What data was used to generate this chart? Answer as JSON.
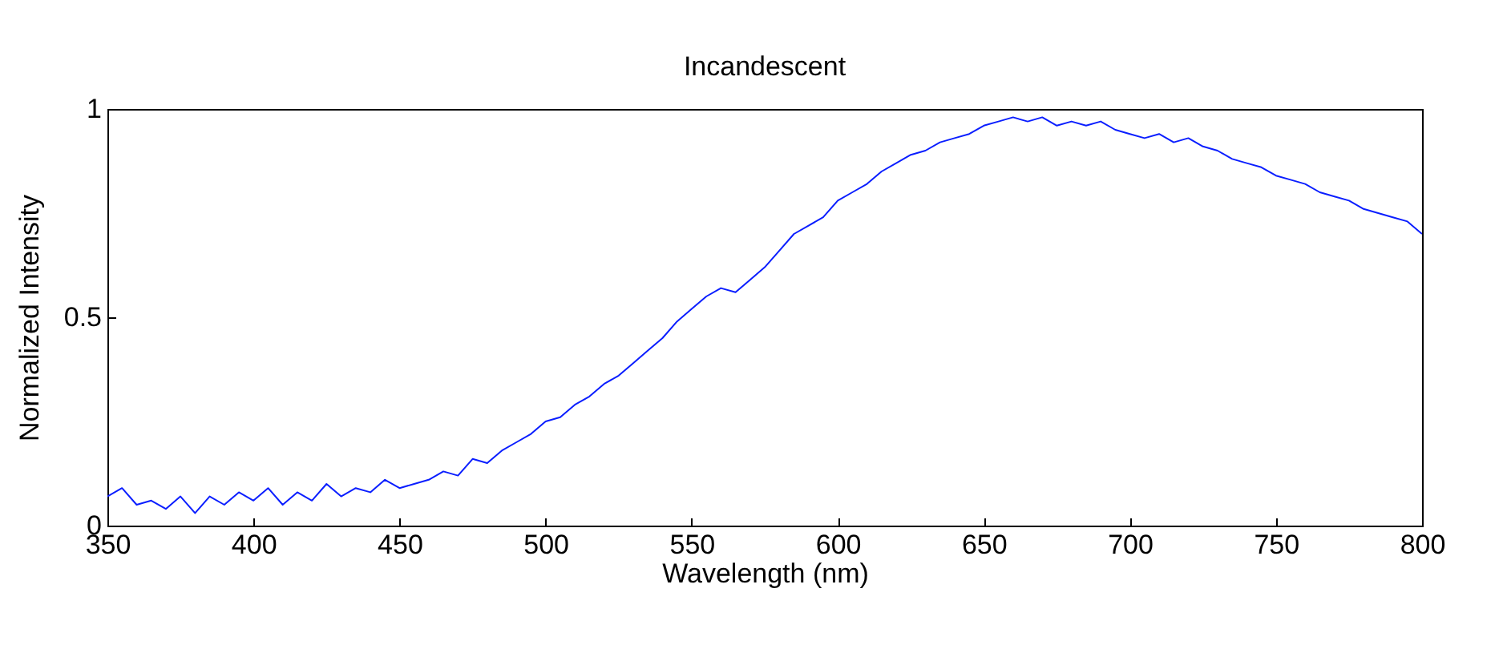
{
  "chart_data": {
    "type": "line",
    "title": "Incandescent",
    "xlabel": "Wavelength (nm)",
    "ylabel": "Normalized Intensity",
    "x": [
      350,
      355,
      360,
      365,
      370,
      375,
      380,
      385,
      390,
      395,
      400,
      405,
      410,
      415,
      420,
      425,
      430,
      435,
      440,
      445,
      450,
      455,
      460,
      465,
      470,
      475,
      480,
      485,
      490,
      495,
      500,
      505,
      510,
      515,
      520,
      525,
      530,
      535,
      540,
      545,
      550,
      555,
      560,
      565,
      570,
      575,
      580,
      585,
      590,
      595,
      600,
      605,
      610,
      615,
      620,
      625,
      630,
      635,
      640,
      645,
      650,
      655,
      660,
      665,
      670,
      675,
      680,
      685,
      690,
      695,
      700,
      705,
      710,
      715,
      720,
      725,
      730,
      735,
      740,
      745,
      750,
      755,
      760,
      765,
      770,
      775,
      780,
      785,
      790,
      795,
      800
    ],
    "series": [
      {
        "color": "#0a1eff",
        "values": [
          0.07,
          0.09,
          0.05,
          0.06,
          0.04,
          0.07,
          0.03,
          0.07,
          0.05,
          0.08,
          0.06,
          0.09,
          0.05,
          0.08,
          0.06,
          0.1,
          0.07,
          0.09,
          0.08,
          0.11,
          0.09,
          0.1,
          0.11,
          0.13,
          0.12,
          0.16,
          0.15,
          0.18,
          0.2,
          0.22,
          0.25,
          0.26,
          0.29,
          0.31,
          0.34,
          0.36,
          0.39,
          0.42,
          0.45,
          0.49,
          0.52,
          0.55,
          0.57,
          0.56,
          0.59,
          0.62,
          0.66,
          0.7,
          0.72,
          0.74,
          0.78,
          0.8,
          0.82,
          0.85,
          0.87,
          0.89,
          0.9,
          0.92,
          0.93,
          0.94,
          0.96,
          0.97,
          0.98,
          0.97,
          0.98,
          0.96,
          0.97,
          0.96,
          0.97,
          0.95,
          0.94,
          0.93,
          0.94,
          0.92,
          0.93,
          0.91,
          0.9,
          0.88,
          0.87,
          0.86,
          0.84,
          0.83,
          0.82,
          0.8,
          0.79,
          0.78,
          0.76,
          0.75,
          0.74,
          0.73,
          0.7
        ]
      }
    ],
    "xlim": [
      350,
      800
    ],
    "ylim": [
      0,
      1
    ],
    "xticks": [
      350,
      400,
      450,
      500,
      550,
      600,
      650,
      700,
      750,
      800
    ],
    "yticks": [
      0,
      0.5,
      1
    ],
    "grid": false,
    "marker": "none",
    "line_style": "solid"
  }
}
